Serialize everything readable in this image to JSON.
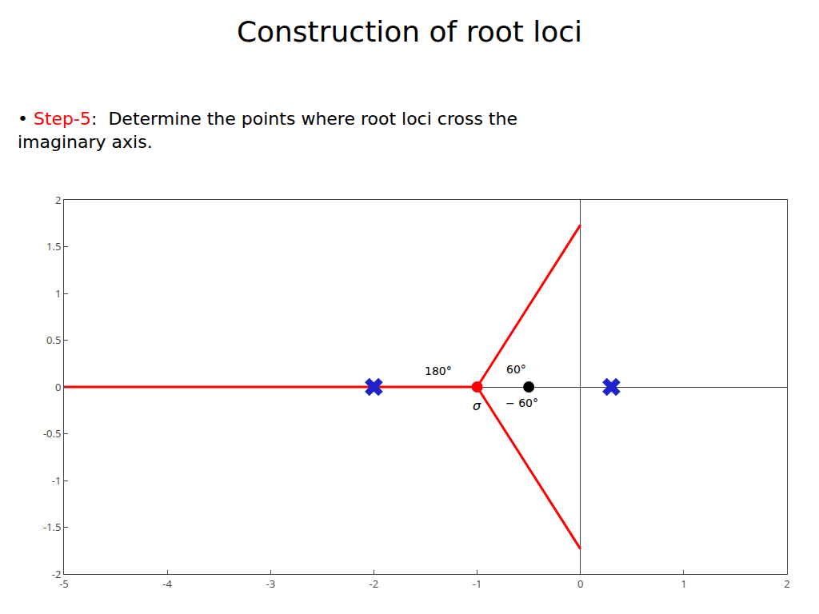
{
  "chart_data": {
    "type": "scatter",
    "title": "Construction of root loci",
    "subtitle": [
      {
        "text": "•"
      },
      {
        "text": "Step-5",
        "color": "#ff0000"
      },
      {
        "text": ":  Determine the points where root loci cross the\nimaginary axis."
      }
    ],
    "xlim": [
      -5,
      2
    ],
    "ylim": [
      -2,
      2
    ],
    "xticks": [
      -5,
      -4,
      -3,
      -2,
      -1,
      0,
      1,
      2
    ],
    "yticks": [
      -2,
      -1.5,
      -1,
      -0.5,
      0,
      0.5,
      1,
      1.5,
      2
    ],
    "grid": false,
    "series": [
      {
        "type": "line",
        "color": "#ff0000",
        "line_style": "solid",
        "x": [
          -5,
          -1
        ],
        "values": [
          0,
          0
        ]
      },
      {
        "type": "line",
        "color": "#ff0000",
        "line_style": "solid",
        "x": [
          -1,
          0
        ],
        "values": [
          0,
          1.7320508075688772
        ]
      },
      {
        "type": "line",
        "color": "#ff0000",
        "line_style": "solid",
        "x": [
          -1,
          0
        ],
        "values": [
          0,
          -1.7320508075688772
        ]
      },
      {
        "type": "scatter",
        "color": "#2222cc",
        "marker": "x",
        "x": [
          -2,
          0.3
        ],
        "values": [
          0,
          0
        ]
      },
      {
        "type": "scatter",
        "color": "#ff0000",
        "marker": "circle",
        "x": [
          -1
        ],
        "values": [
          0
        ]
      },
      {
        "type": "scatter",
        "color": "#000000",
        "marker": "circle",
        "x": [
          -0.5
        ],
        "values": [
          0
        ]
      }
    ],
    "annotations": [
      {
        "text": "180°",
        "x": -1.38,
        "y": 0.17
      },
      {
        "text": "60°",
        "x": -0.62,
        "y": 0.19
      },
      {
        "text": "− 60°",
        "x": -0.57,
        "y": -0.17
      },
      {
        "text": "σ",
        "x": -1,
        "y": -0.1
      }
    ]
  }
}
